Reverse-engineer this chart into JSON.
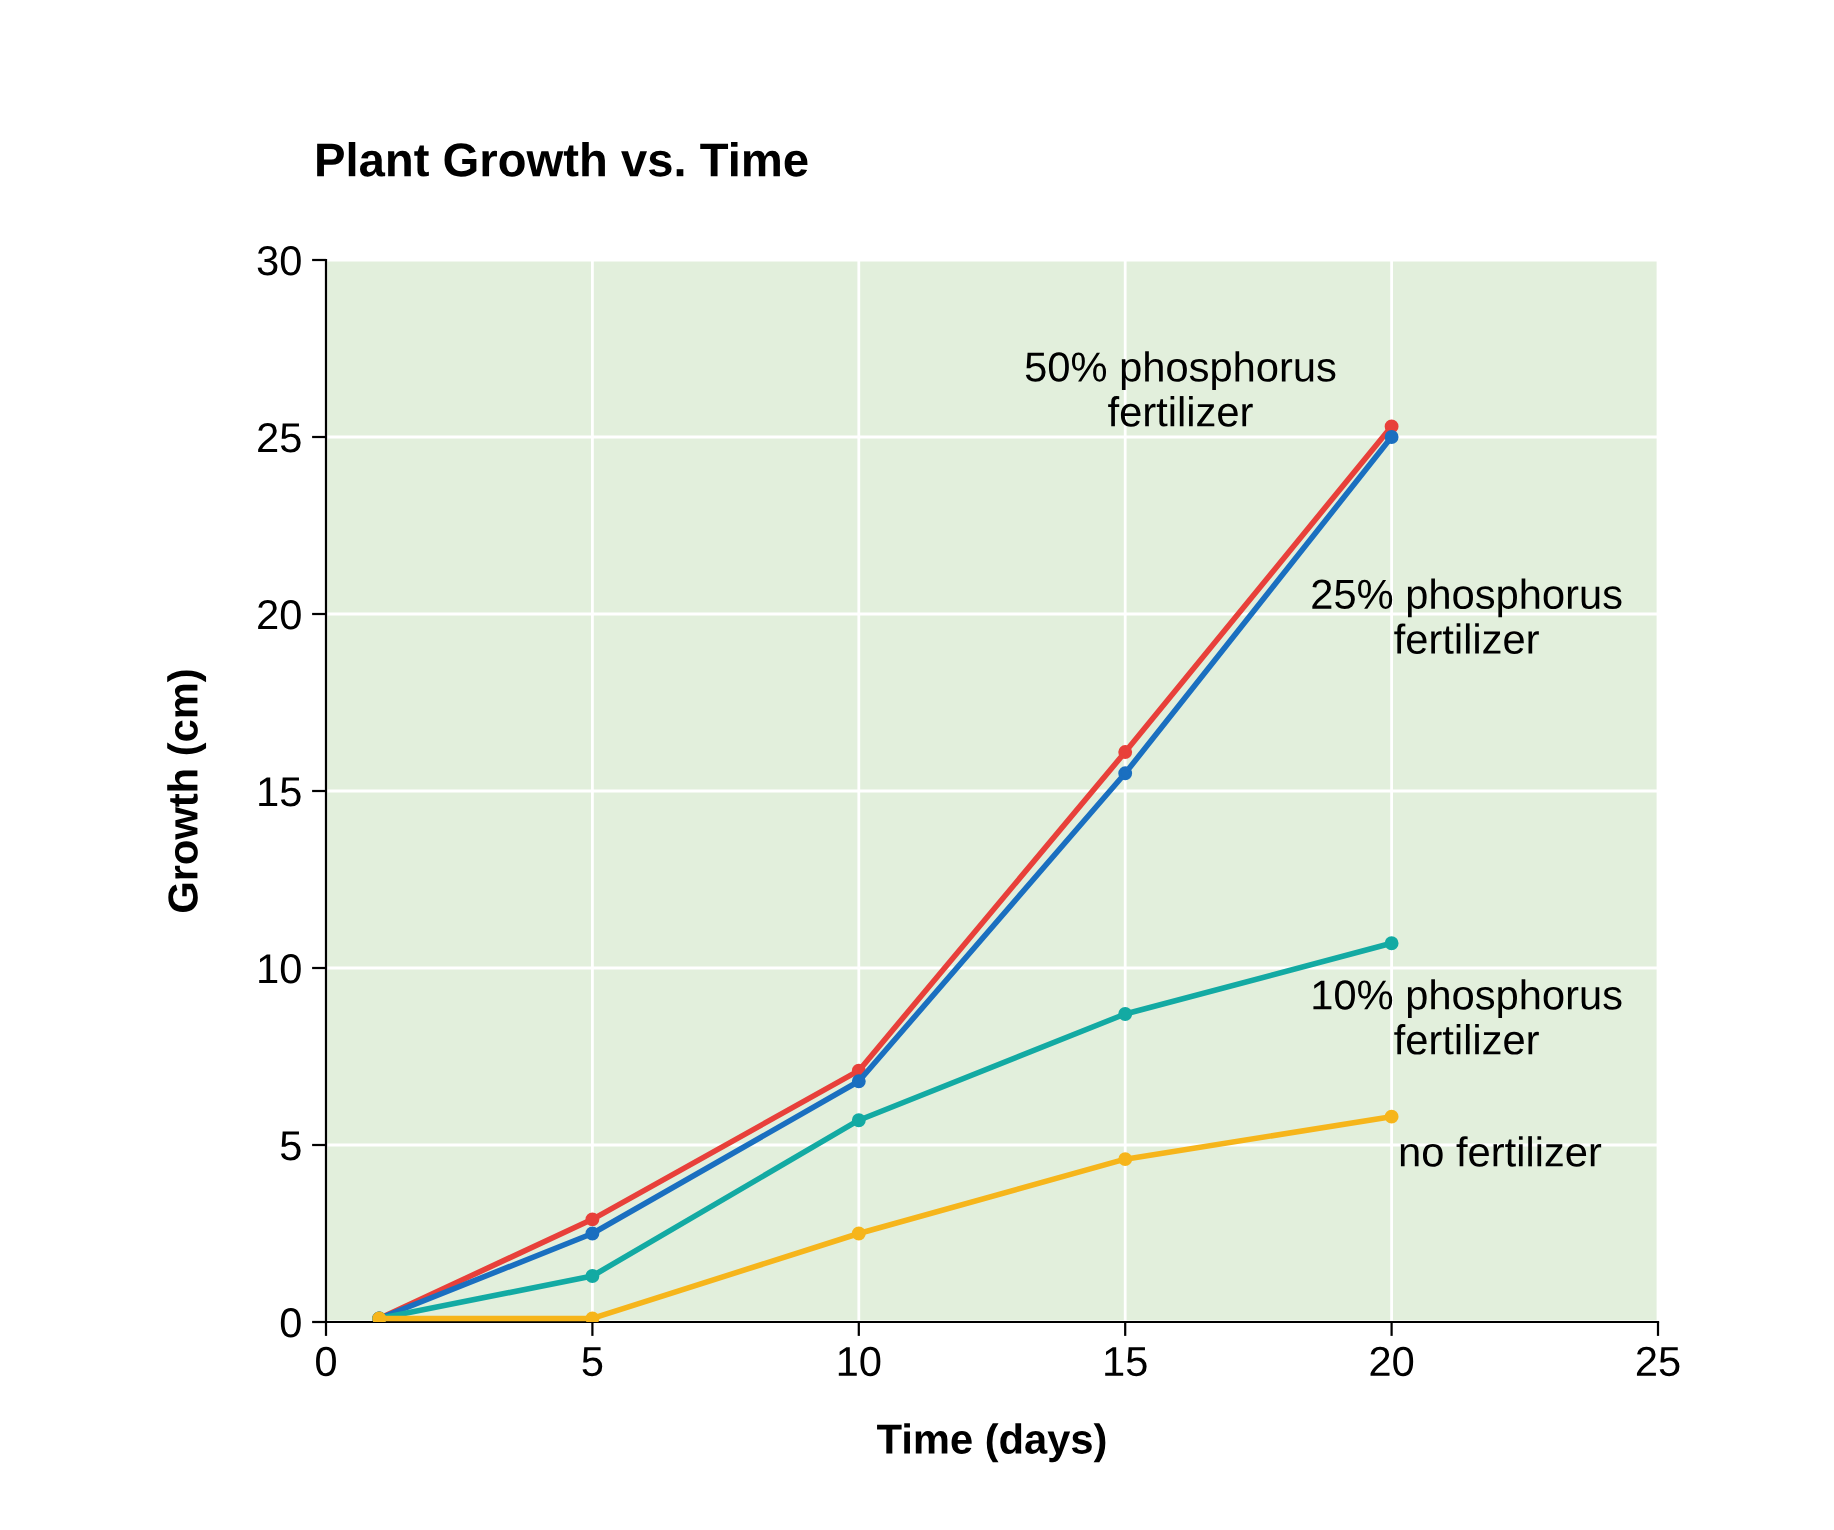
{
  "chart_data": {
    "type": "line",
    "title": "Plant Growth vs. Time",
    "xlabel": "Time (days)",
    "ylabel": "Growth (cm)",
    "x": [
      1,
      5,
      10,
      15,
      20
    ],
    "series": [
      {
        "name": "50% phosphorus\nfertilizer",
        "color": "#e8403a",
        "values": [
          0.1,
          2.9,
          7.1,
          16.1,
          25.3
        ]
      },
      {
        "name": "25% phosphorus\nfertilizer",
        "color": "#1a6fc0",
        "values": [
          0.1,
          2.5,
          6.8,
          15.5,
          25.0
        ]
      },
      {
        "name": "10% phosphorus\nfertilizer",
        "color": "#13aaa3",
        "values": [
          0.1,
          1.3,
          5.7,
          8.7,
          10.7
        ]
      },
      {
        "name": "no fertilizer",
        "color": "#f6b51b",
        "values": [
          0.1,
          0.1,
          2.5,
          4.6,
          5.8
        ]
      }
    ],
    "xlim": [
      0,
      25
    ],
    "xticks": [
      0,
      5,
      10,
      15,
      20,
      25
    ],
    "ylim": [
      0,
      30
    ],
    "yticks": [
      0,
      5,
      10,
      15,
      20,
      25,
      30
    ],
    "grid": true,
    "marker": "circle",
    "line_style": "solid",
    "legend": false
  }
}
